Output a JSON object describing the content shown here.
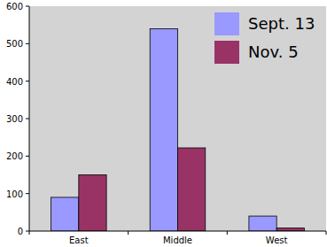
{
  "chart_data": {
    "type": "bar",
    "categories": [
      "East",
      "Middle",
      "West"
    ],
    "series": [
      {
        "name": "Sept. 13",
        "color": "#9999ff",
        "values": [
          90,
          540,
          40
        ]
      },
      {
        "name": "Nov. 5",
        "color": "#993366",
        "values": [
          150,
          222,
          8
        ]
      }
    ],
    "ylim": [
      0,
      600
    ],
    "yticks": [
      0,
      100,
      200,
      300,
      400,
      500,
      600
    ],
    "grid": false,
    "legend": "upper right"
  }
}
